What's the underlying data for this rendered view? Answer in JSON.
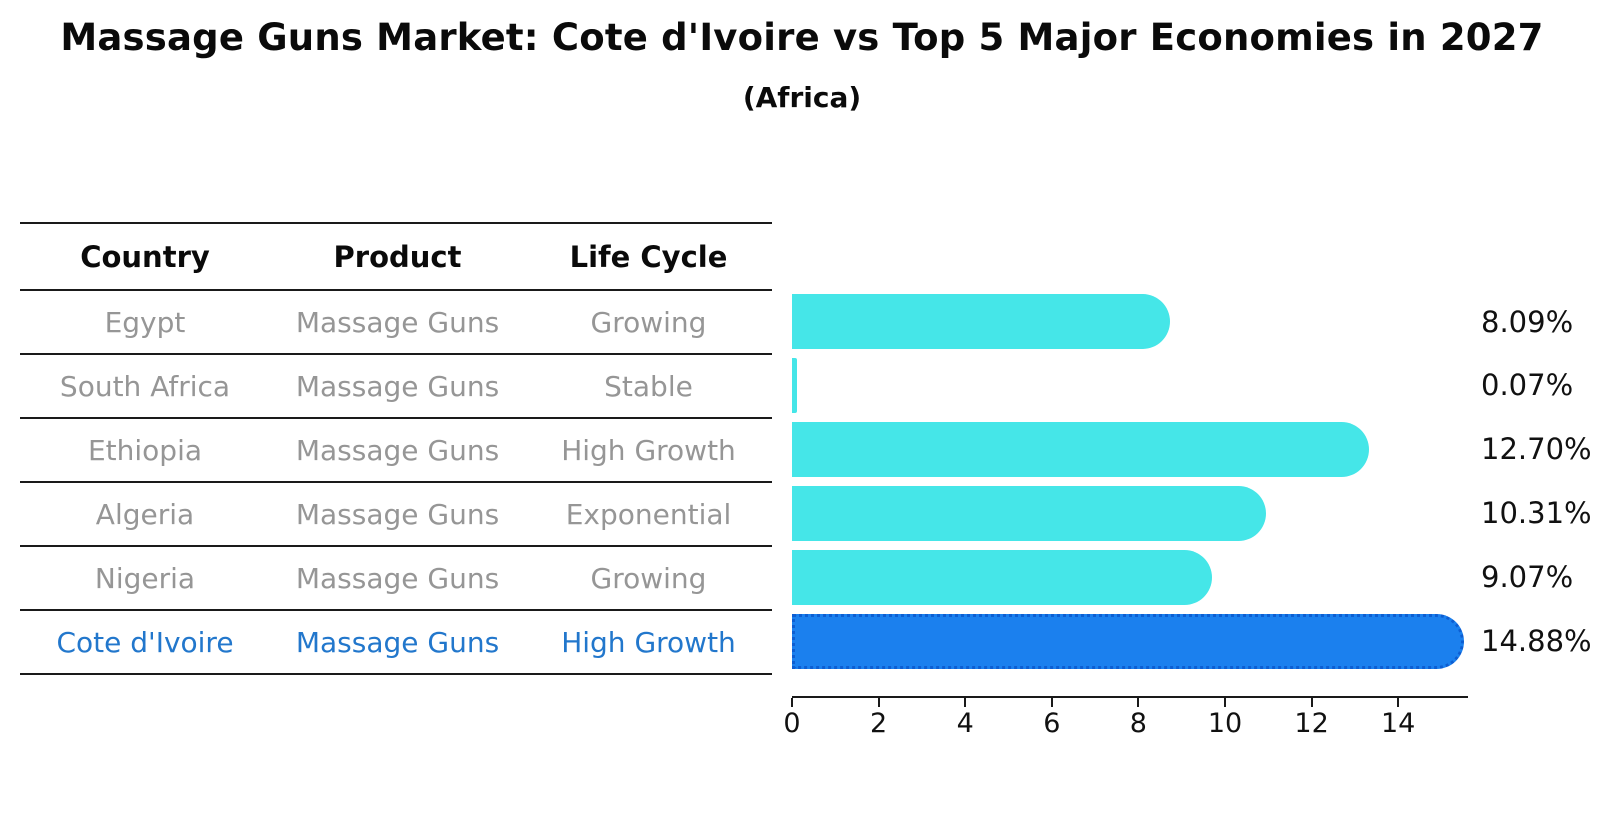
{
  "header": {
    "title": "Massage Guns Market: Cote d'Ivoire vs Top 5 Major Economies in 2027",
    "subtitle": "(Africa)"
  },
  "table": {
    "columns": [
      "Country",
      "Product",
      "Life Cycle"
    ],
    "rows": [
      {
        "country": "Egypt",
        "product": "Massage Guns",
        "life_cycle": "Growing",
        "highlighted": false
      },
      {
        "country": "South Africa",
        "product": "Massage Guns",
        "life_cycle": "Stable",
        "highlighted": false
      },
      {
        "country": "Ethiopia",
        "product": "Massage Guns",
        "life_cycle": "High Growth",
        "highlighted": false
      },
      {
        "country": "Algeria",
        "product": "Massage Guns",
        "life_cycle": "Exponential",
        "highlighted": false
      },
      {
        "country": "Nigeria",
        "product": "Massage Guns",
        "life_cycle": "Growing",
        "highlighted": false
      },
      {
        "country": "Cote d'Ivoire",
        "product": "Massage Guns",
        "life_cycle": "High Growth",
        "highlighted": true
      }
    ]
  },
  "chart_data": {
    "type": "bar",
    "orientation": "horizontal",
    "title": "Massage Guns Market: Cote d'Ivoire vs Top 5 Major Economies in 2027 (Africa)",
    "categories": [
      "Egypt",
      "South Africa",
      "Ethiopia",
      "Algeria",
      "Nigeria",
      "Cote d'Ivoire"
    ],
    "values": [
      8.09,
      0.07,
      12.7,
      10.31,
      9.07,
      14.88
    ],
    "value_labels": [
      "8.09%",
      "0.07%",
      "12.70%",
      "10.31%",
      "9.07%",
      "14.88%"
    ],
    "xlabel": "",
    "ylabel": "",
    "xlim": [
      0,
      15.6
    ],
    "xticks": [
      0,
      2,
      4,
      6,
      8,
      10,
      12,
      14
    ],
    "grid": false,
    "legend": null,
    "bar_color": "#45E6E8",
    "highlight_index": 5,
    "highlight_color": "#1B80EE",
    "highlight_border_color": "#0D5ED2"
  },
  "colors": {
    "table_text": "#969696",
    "highlight_text": "#2277CC",
    "heading_text": "#0a0a0a",
    "axis": "#1a1a1a"
  }
}
